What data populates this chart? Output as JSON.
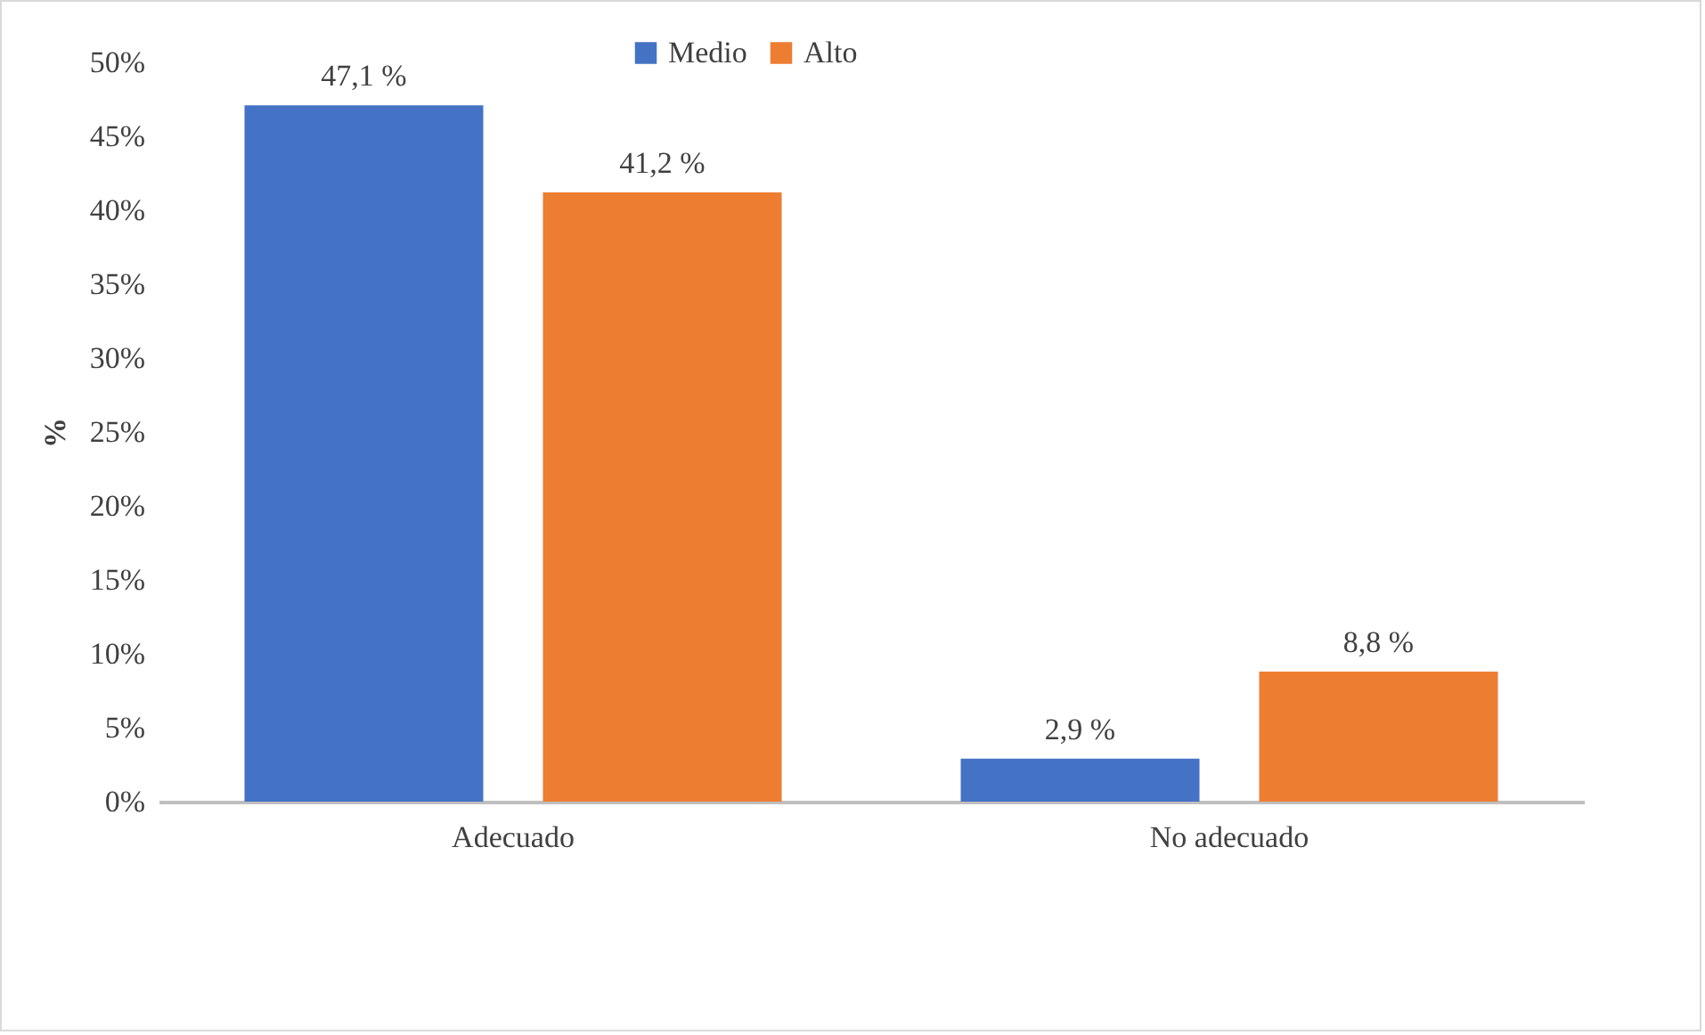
{
  "chart_data": {
    "type": "bar",
    "ylabel": "%",
    "categories": [
      "Adecuado",
      "No adecuado"
    ],
    "series": [
      {
        "name": "Medio",
        "color": "#4472c4",
        "values": [
          47.1,
          2.9
        ],
        "value_labels": [
          "47,1 %",
          "2,9 %"
        ]
      },
      {
        "name": "Alto",
        "color": "#ed7d31",
        "values": [
          41.2,
          8.8
        ],
        "value_labels": [
          "41,2 %",
          "8,8 %"
        ]
      }
    ],
    "ylim": [
      0,
      50
    ],
    "yticks": [
      {
        "value": 0,
        "label": "0%"
      },
      {
        "value": 5,
        "label": "5%"
      },
      {
        "value": 10,
        "label": "10%"
      },
      {
        "value": 15,
        "label": "15%"
      },
      {
        "value": 20,
        "label": "20%"
      },
      {
        "value": 25,
        "label": "25%"
      },
      {
        "value": 30,
        "label": "30%"
      },
      {
        "value": 35,
        "label": "35%"
      },
      {
        "value": 40,
        "label": "40%"
      },
      {
        "value": 45,
        "label": "45%"
      },
      {
        "value": 50,
        "label": "50%"
      }
    ],
    "grid": false,
    "legend": "top"
  }
}
